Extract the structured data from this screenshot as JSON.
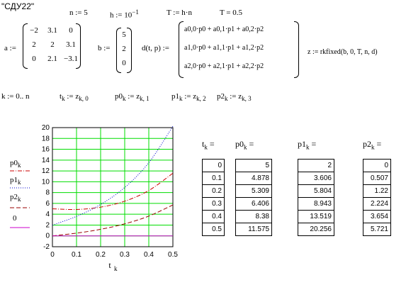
{
  "title": "\"СДУ22\"",
  "defs": {
    "n": "n := 5",
    "h_base": "h := 10",
    "h_exp": "−1",
    "T": "T := h·n",
    "T_val": "T = 0.5",
    "a_lbl": "a :=",
    "b_lbl": "b :=",
    "d_lbl": "d(t, p) :=",
    "z_def": "z := rkfixed(b, 0, T, n, d)",
    "k_def": "k := 0.. n",
    "t_def": "t",
    "t_def_rhs": " := z",
    "t_def_sub": "k, 0",
    "p0_def": "p0",
    "p0_def_rhs": " := z",
    "p0_def_sub": "k, 1",
    "p1_def": "p1",
    "p1_def_rhs": " := z",
    "p1_def_sub": "k, 2",
    "p2_def": "p2",
    "p2_def_rhs": " := z",
    "p2_def_sub": "k, 3"
  },
  "matrix_a": [
    [
      "−2",
      "3.1",
      "0"
    ],
    [
      "2",
      "2",
      "3.1"
    ],
    [
      "0",
      "2.1",
      "−3.1"
    ]
  ],
  "vector_b": [
    "5",
    "2",
    "0"
  ],
  "d_rows": [
    "a0,0·p0 + a0,1·p1 + a0,2·p2",
    "a1,0·p0 + a1,1·p1 + a1,2·p2",
    "a2,0·p0 + a2,1·p1 + a2,2·p2"
  ],
  "legend": {
    "p0": "p0",
    "p1": "p1",
    "p2": "p2",
    "zero": "0",
    "sub_k": "k"
  },
  "colors": {
    "p0": "#cc0000",
    "p1": "#0000cc",
    "p2": "#990000",
    "zero": "#cc00cc",
    "grid": "#00dd00"
  },
  "chart_data": {
    "type": "line",
    "x": [
      0,
      0.1,
      0.2,
      0.3,
      0.4,
      0.5
    ],
    "series": [
      {
        "name": "p0",
        "values": [
          5,
          4.878,
          5.309,
          6.406,
          8.38,
          11.575
        ],
        "style": "dash-dot"
      },
      {
        "name": "p1",
        "values": [
          2,
          3.606,
          5.804,
          8.943,
          13.519,
          20.256
        ],
        "style": "dotted"
      },
      {
        "name": "p2",
        "values": [
          0,
          0.507,
          1.22,
          2.224,
          3.654,
          5.721
        ],
        "style": "dashed"
      },
      {
        "name": "0",
        "values": [
          0,
          0,
          0,
          0,
          0,
          0
        ],
        "style": "solid"
      }
    ],
    "xlabel": "t",
    "xlabel_sub": "k",
    "xlim": [
      0,
      0.5
    ],
    "ylim": [
      -2,
      20
    ],
    "xticks": [
      "0",
      "0.1",
      "0.2",
      "0.3",
      "0.4",
      "0.5"
    ],
    "yticks": [
      "-2",
      "0",
      "2",
      "4",
      "6",
      "8",
      "10",
      "12",
      "14",
      "16",
      "18",
      "20"
    ],
    "grid": true
  },
  "tables": [
    {
      "label": "t",
      "sub": "k",
      "values": [
        "0",
        "0.1",
        "0.2",
        "0.3",
        "0.4",
        "0.5"
      ]
    },
    {
      "label": "p0",
      "sub": "k",
      "values": [
        "5",
        "4.878",
        "5.309",
        "6.406",
        "8.38",
        "11.575"
      ]
    },
    {
      "label": "p1",
      "sub": "k",
      "values": [
        "2",
        "3.606",
        "5.804",
        "8.943",
        "13.519",
        "20.256"
      ]
    },
    {
      "label": "p2",
      "sub": "k",
      "values": [
        "0",
        "0.507",
        "1.22",
        "2.224",
        "3.654",
        "5.721"
      ]
    }
  ],
  "eq_sign": " ="
}
